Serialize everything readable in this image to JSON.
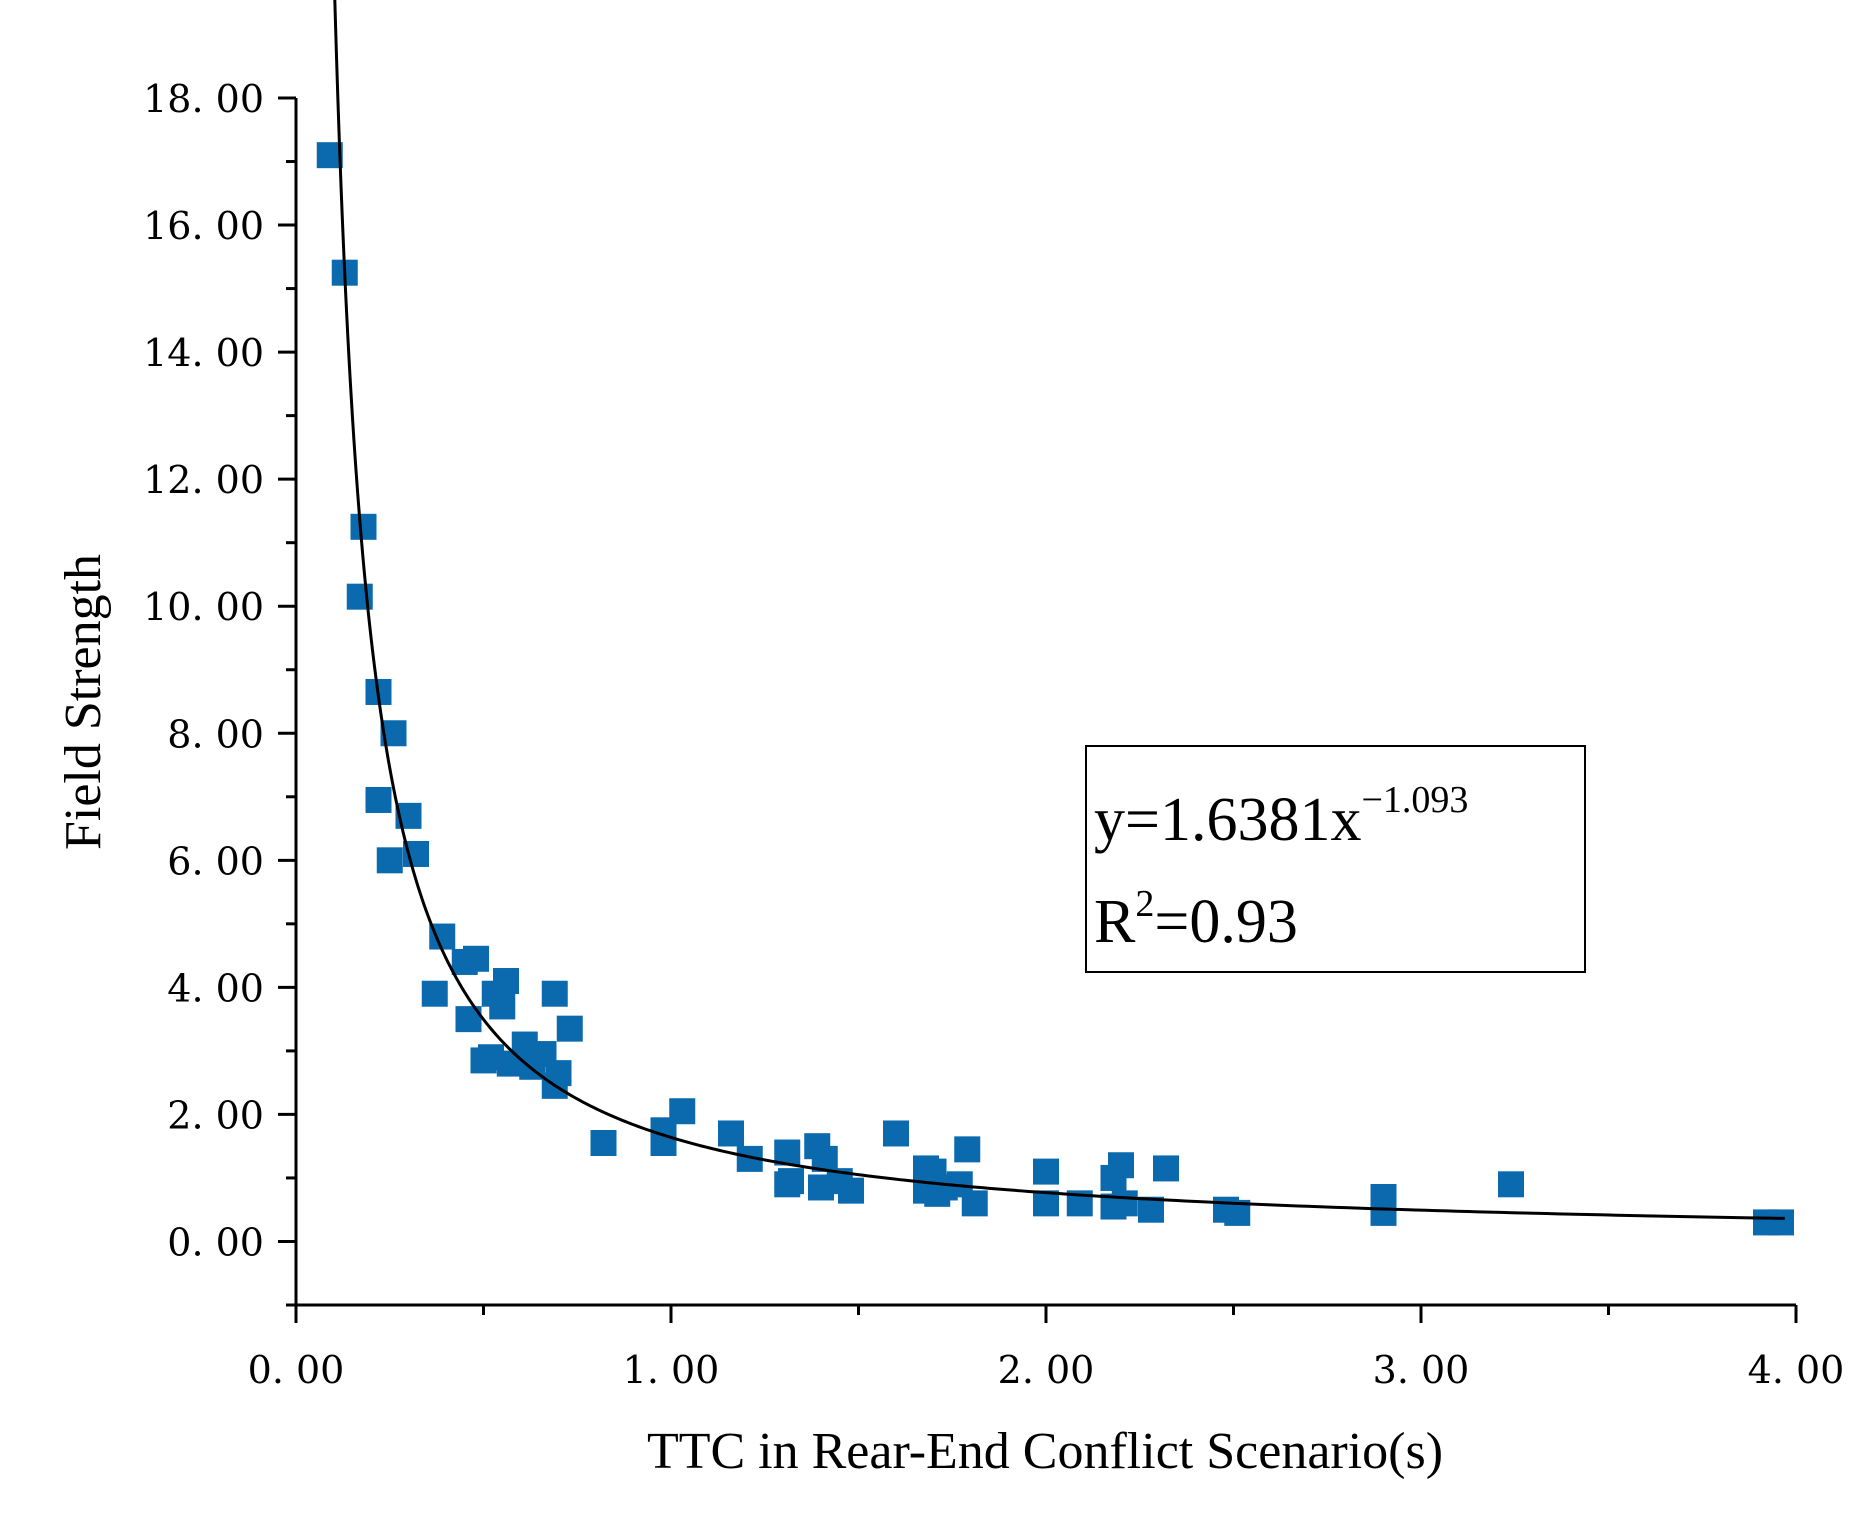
{
  "chart_data": {
    "type": "scatter",
    "title": "",
    "xlabel": "TTC in Rear-End Conflict Scenario(s)",
    "ylabel": "Field Strength",
    "xlim": [
      0,
      4
    ],
    "ylim": [
      -1,
      18
    ],
    "x_ticks": [
      0,
      1,
      2,
      3,
      4
    ],
    "x_tick_labels": [
      "0. 00",
      "1. 00",
      "2. 00",
      "3. 00",
      "4. 00"
    ],
    "y_ticks": [
      0,
      2,
      4,
      6,
      8,
      10,
      12,
      14,
      16,
      18
    ],
    "y_tick_labels": [
      "0. 00",
      "2. 00",
      "4. 00",
      "6. 00",
      "8. 00",
      "10. 00",
      "12. 00",
      "14. 00",
      "16. 00",
      "18. 00"
    ],
    "marker_color": "#0a6aad",
    "fit_color": "#000000",
    "grid": false,
    "annotation": {
      "equation_base": "y=1.6381x",
      "equation_exponent": "−1.093",
      "r2_label": "R",
      "r2_sup": "2",
      "r2_value": "=0.93"
    },
    "fit": {
      "model": "power",
      "coefficient": 1.6381,
      "exponent": -1.093,
      "x_start": 0.1,
      "x_end": 3.97
    },
    "series": [
      {
        "name": "observations",
        "points": [
          [
            0.09,
            17.1
          ],
          [
            0.13,
            15.25
          ],
          [
            0.18,
            11.25
          ],
          [
            0.17,
            10.15
          ],
          [
            0.22,
            8.65
          ],
          [
            0.26,
            8.0
          ],
          [
            0.22,
            6.95
          ],
          [
            0.3,
            6.7
          ],
          [
            0.25,
            6.0
          ],
          [
            0.32,
            6.1
          ],
          [
            0.39,
            4.8
          ],
          [
            0.37,
            3.9
          ],
          [
            0.45,
            4.4
          ],
          [
            0.48,
            4.45
          ],
          [
            0.46,
            3.5
          ],
          [
            0.53,
            3.9
          ],
          [
            0.56,
            4.1
          ],
          [
            0.55,
            3.7
          ],
          [
            0.5,
            2.85
          ],
          [
            0.52,
            2.9
          ],
          [
            0.57,
            2.8
          ],
          [
            0.61,
            3.1
          ],
          [
            0.63,
            2.75
          ],
          [
            0.66,
            2.95
          ],
          [
            0.69,
            3.9
          ],
          [
            0.7,
            2.65
          ],
          [
            0.73,
            3.35
          ],
          [
            0.69,
            2.45
          ],
          [
            0.82,
            1.55
          ],
          [
            0.98,
            1.75
          ],
          [
            0.98,
            1.55
          ],
          [
            1.03,
            2.05
          ],
          [
            1.16,
            1.7
          ],
          [
            1.21,
            1.3
          ],
          [
            1.31,
            1.4
          ],
          [
            1.32,
            0.95
          ],
          [
            1.31,
            0.9
          ],
          [
            1.39,
            1.5
          ],
          [
            1.41,
            1.3
          ],
          [
            1.4,
            0.85
          ],
          [
            1.45,
            0.95
          ],
          [
            1.48,
            0.8
          ],
          [
            1.6,
            1.7
          ],
          [
            1.68,
            1.15
          ],
          [
            1.7,
            1.1
          ],
          [
            1.68,
            0.8
          ],
          [
            1.71,
            0.75
          ],
          [
            1.73,
            0.85
          ],
          [
            1.79,
            1.45
          ],
          [
            1.77,
            0.9
          ],
          [
            1.81,
            0.6
          ],
          [
            2.0,
            1.1
          ],
          [
            2.0,
            0.6
          ],
          [
            2.09,
            0.6
          ],
          [
            2.18,
            0.55
          ],
          [
            2.18,
            1.0
          ],
          [
            2.2,
            1.2
          ],
          [
            2.21,
            0.6
          ],
          [
            2.28,
            0.5
          ],
          [
            2.32,
            1.15
          ],
          [
            2.48,
            0.5
          ],
          [
            2.51,
            0.45
          ],
          [
            2.9,
            0.7
          ],
          [
            2.9,
            0.45
          ],
          [
            3.24,
            0.9
          ],
          [
            3.92,
            0.3
          ],
          [
            3.96,
            0.3
          ]
        ]
      }
    ]
  }
}
